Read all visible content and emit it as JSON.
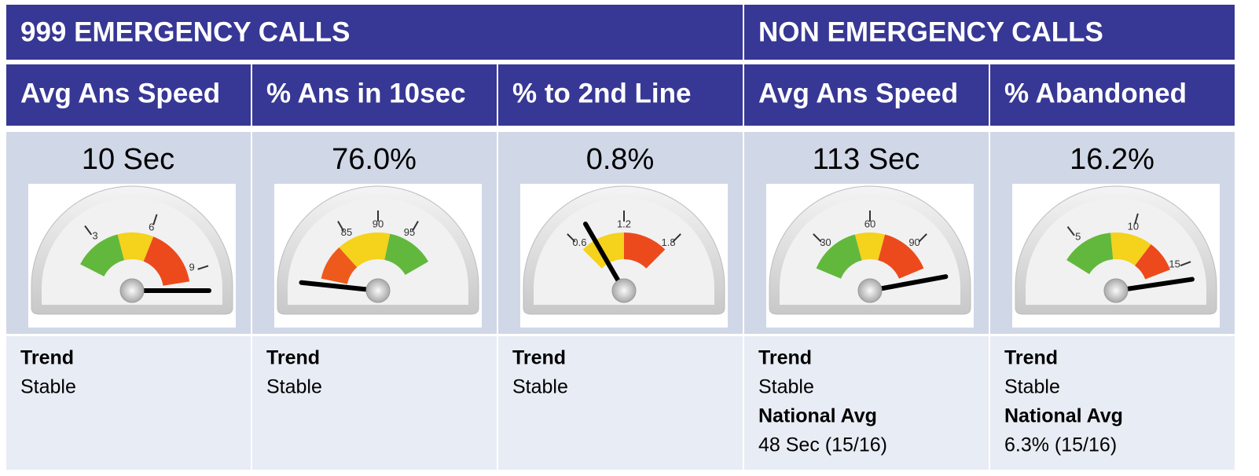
{
  "groups": [
    {
      "title": "999 EMERGENCY CALLS",
      "columns": [
        {
          "header": "Avg Ans Speed",
          "display": "10 Sec",
          "gauge": {
            "min": 0,
            "max": 10,
            "value": 10,
            "ticks": [
              3,
              6,
              9
            ],
            "bands": [
              {
                "from": 1.5,
                "to": 4.2,
                "color": "#62b83c"
              },
              {
                "from": 4.2,
                "to": 6.2,
                "color": "#f5d21c"
              },
              {
                "from": 6.2,
                "to": 9.5,
                "color": "#ec4a1c"
              }
            ]
          },
          "details": [
            {
              "label": "Trend",
              "text": "Stable"
            }
          ]
        },
        {
          "header": "% Ans in 10sec",
          "display": "76.0%",
          "gauge": {
            "min": 75,
            "max": 105,
            "value": 76,
            "ticks": [
              85,
              90,
              95
            ],
            "bands": [
              {
                "from": 77,
                "to": 83,
                "color": "#ee5a1c"
              },
              {
                "from": 83,
                "to": 92,
                "color": "#f5d21c"
              },
              {
                "from": 92,
                "to": 100,
                "color": "#62b83c"
              }
            ]
          },
          "details": [
            {
              "label": "Trend",
              "text": "Stable"
            }
          ]
        },
        {
          "header": "% to 2nd Line",
          "display": "0.8%",
          "gauge": {
            "min": 0,
            "max": 2.4,
            "value": 0.8,
            "ticks": [
              0.6,
              1.2,
              1.8
            ],
            "bands": [
              {
                "from": 0.6,
                "to": 1.2,
                "color": "#f5d21c"
              },
              {
                "from": 1.2,
                "to": 1.8,
                "color": "#ec4a1c"
              }
            ]
          },
          "details": [
            {
              "label": "Trend",
              "text": "Stable"
            }
          ]
        }
      ]
    },
    {
      "title": "NON EMERGENCY CALLS",
      "columns": [
        {
          "header": "Avg Ans Speed",
          "display": "113 Sec",
          "gauge": {
            "min": 0,
            "max": 120,
            "value": 113,
            "ticks": [
              30,
              60,
              90
            ],
            "bands": [
              {
                "from": 15,
                "to": 50,
                "color": "#62b83c"
              },
              {
                "from": 50,
                "to": 70,
                "color": "#f5d21c"
              },
              {
                "from": 70,
                "to": 105,
                "color": "#ec4a1c"
              }
            ]
          },
          "details": [
            {
              "label": "Trend",
              "text": "Stable"
            },
            {
              "label": "National Avg",
              "text": "48 Sec (15/16)"
            }
          ]
        },
        {
          "header": "% Abandoned",
          "display": "16.2%",
          "gauge": {
            "min": 0,
            "max": 17,
            "value": 16.2,
            "ticks": [
              5,
              10,
              15
            ],
            "bands": [
              {
                "from": 3,
                "to": 8,
                "color": "#62b83c"
              },
              {
                "from": 8,
                "to": 12,
                "color": "#f5d21c"
              },
              {
                "from": 12,
                "to": 15,
                "color": "#ec4a1c"
              }
            ]
          },
          "details": [
            {
              "label": "Trend",
              "text": "Stable"
            },
            {
              "label": "National Avg",
              "text": "6.3% (15/16)"
            }
          ]
        }
      ]
    }
  ]
}
